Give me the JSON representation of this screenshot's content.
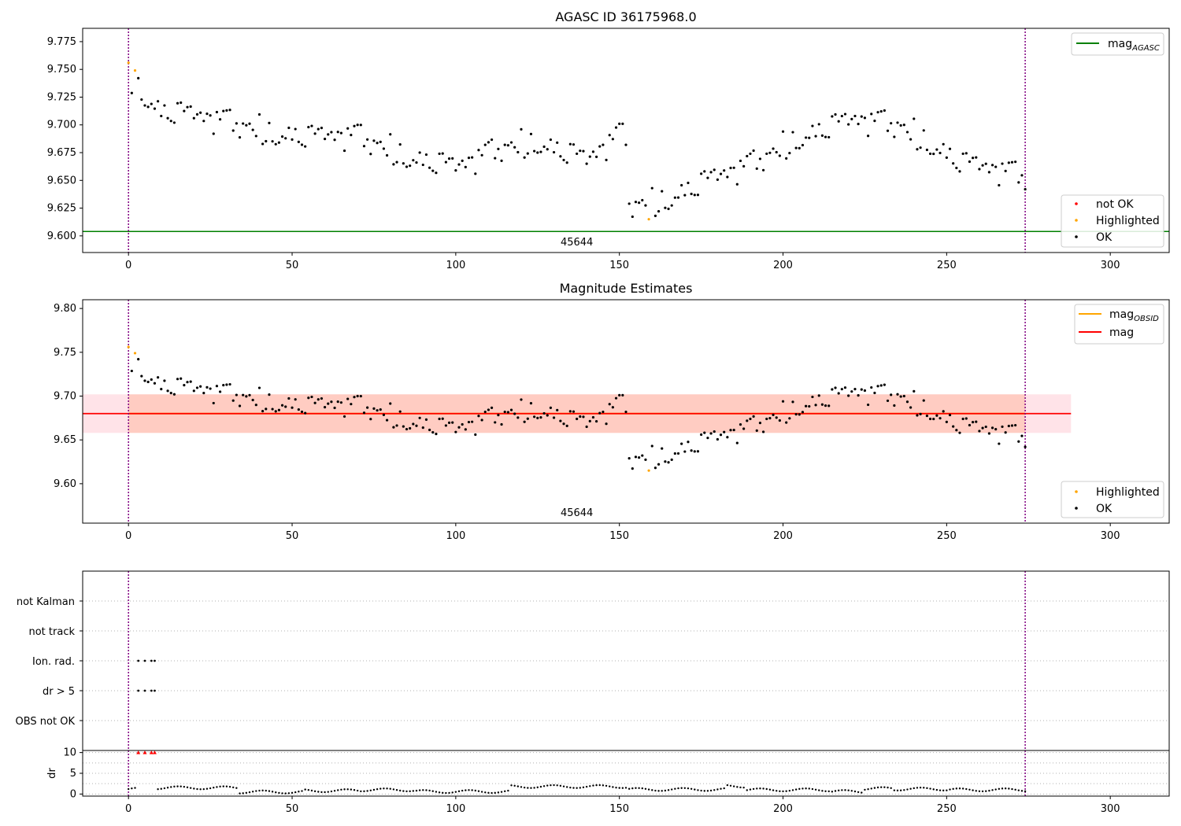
{
  "figure": {
    "title": "AGASC ID 36175968.0"
  },
  "colors": {
    "ok": "#000000",
    "highlighted": "#ffa500",
    "not_ok": "#ff0000",
    "agasc_line": "#008000",
    "mag_line": "#ff0000",
    "obsid_line": "#ffa500",
    "band_outer": "#ffc0cb",
    "band_inner": "#ffa07a",
    "vline": "#800080",
    "grid": "#b0b0b0"
  },
  "chart_data": [
    {
      "id": "agasc_panel",
      "type": "scatter",
      "title": "AGASC ID 36175968.0",
      "xlim": [
        -14,
        318
      ],
      "ylim": [
        9.585,
        9.787
      ],
      "xticks": [
        0,
        50,
        100,
        150,
        200,
        250,
        300
      ],
      "yticks": [
        9.6,
        9.625,
        9.65,
        9.675,
        9.7,
        9.725,
        9.75,
        9.775
      ],
      "ytick_labels": [
        "9.600",
        "9.625",
        "9.650",
        "9.675",
        "9.700",
        "9.725",
        "9.750",
        "9.775"
      ],
      "obsid_annotation": {
        "text": "45644",
        "x": 137
      },
      "obsid_boundaries": [
        0,
        274
      ],
      "hlines": [
        {
          "name": "mag_AGASC",
          "y": 9.604,
          "color_key": "agasc_line"
        }
      ],
      "legend_top": {
        "position": "top-right",
        "entries": [
          {
            "base": "mag",
            "sub": "AGASC",
            "kind": "line",
            "color_key": "agasc_line"
          }
        ]
      },
      "legend_bottom": {
        "position": "lower-right",
        "entries": [
          {
            "label": "not OK",
            "kind": "dot",
            "color_key": "not_ok"
          },
          {
            "label": "Highlighted",
            "kind": "dot",
            "color_key": "highlighted"
          },
          {
            "label": "OK",
            "kind": "dot",
            "color_key": "ok"
          }
        ]
      },
      "highlighted_points": [
        {
          "x": 0,
          "y": 9.756
        },
        {
          "x": 2,
          "y": 9.749
        },
        {
          "x": 159,
          "y": 9.615
        }
      ]
    },
    {
      "id": "estimates_panel",
      "type": "scatter",
      "title": "Magnitude Estimates",
      "xlim": [
        -14,
        318
      ],
      "ylim": [
        9.555,
        9.81
      ],
      "xticks": [
        0,
        50,
        100,
        150,
        200,
        250,
        300
      ],
      "yticks": [
        9.6,
        9.65,
        9.7,
        9.75,
        9.8
      ],
      "ytick_labels": [
        "9.60",
        "9.65",
        "9.70",
        "9.75",
        "9.80"
      ],
      "obsid_annotation": {
        "text": "45644",
        "x": 137
      },
      "obsid_boundaries": [
        0,
        274
      ],
      "mag_line": {
        "y": 9.68,
        "x_start": -14,
        "x_end": 288
      },
      "band": {
        "y_low": 9.658,
        "y_high": 9.702,
        "x_start": -14,
        "x_end": 288
      },
      "obsid_mag_segment": {
        "y": 9.68,
        "x_start": 0,
        "x_end": 274
      },
      "legend_top": {
        "position": "top-right",
        "entries": [
          {
            "base": "mag",
            "sub": "OBSID",
            "kind": "line",
            "color_key": "obsid_line"
          },
          {
            "base": "mag",
            "sub": "",
            "kind": "line",
            "color_key": "mag_line"
          }
        ]
      },
      "legend_bottom": {
        "position": "lower-right",
        "entries": [
          {
            "label": "Highlighted",
            "kind": "dot",
            "color_key": "highlighted"
          },
          {
            "label": "OK",
            "kind": "dot",
            "color_key": "ok"
          }
        ]
      },
      "highlighted_points": [
        {
          "x": 0,
          "y": 9.756
        },
        {
          "x": 2,
          "y": 9.749
        },
        {
          "x": 159,
          "y": 9.615
        }
      ]
    },
    {
      "id": "flags_panel",
      "type": "scatter",
      "xlim": [
        -14,
        318
      ],
      "categories": [
        "OBS not OK",
        "dr > 5",
        "Ion. rad.",
        "not track",
        "not Kalman"
      ],
      "points": [
        {
          "category": "dr > 5",
          "x": [
            3,
            5,
            7,
            8
          ]
        },
        {
          "category": "Ion. rad.",
          "x": [
            3,
            5,
            7,
            8
          ]
        }
      ],
      "obsid_boundaries": [
        0,
        274
      ]
    },
    {
      "id": "dr_panel",
      "type": "scatter",
      "ylabel": "dr",
      "xlim": [
        -14,
        318
      ],
      "ylim": [
        -0.5,
        10.5
      ],
      "xticks": [
        0,
        50,
        100,
        150,
        200,
        250,
        300
      ],
      "yticks": [
        0,
        5,
        10
      ],
      "ytick_labels": [
        "0",
        "5",
        "10"
      ],
      "grid_y": [
        0,
        2.5,
        5,
        7.5,
        10
      ],
      "obsid_boundaries": [
        0,
        274
      ],
      "capped_points": {
        "y": 10,
        "x": [
          3,
          5,
          7,
          8
        ]
      },
      "dr_segments": [
        {
          "from": 0,
          "to": 2,
          "value": 1.2
        },
        {
          "from": 9,
          "to": 33,
          "value": 1.5
        },
        {
          "from": 34,
          "to": 53,
          "value": 0.5
        },
        {
          "from": 54,
          "to": 70,
          "value": 0.8
        },
        {
          "from": 71,
          "to": 87,
          "value": 1.0
        },
        {
          "from": 88,
          "to": 116,
          "value": 0.6
        },
        {
          "from": 117,
          "to": 152,
          "value": 1.8
        },
        {
          "from": 153,
          "to": 182,
          "value": 1.1
        },
        {
          "from": 183,
          "to": 188,
          "value": 1.9
        },
        {
          "from": 189,
          "to": 214,
          "value": 1.0
        },
        {
          "from": 215,
          "to": 224,
          "value": 0.6
        },
        {
          "from": 225,
          "to": 233,
          "value": 1.3
        },
        {
          "from": 234,
          "to": 250,
          "value": 1.2
        },
        {
          "from": 251,
          "to": 274,
          "value": 1.0
        }
      ]
    }
  ],
  "mag_series": {
    "x_start": 0,
    "knots": [
      [
        0,
        9.745
      ],
      [
        10,
        9.712
      ],
      [
        30,
        9.702
      ],
      [
        55,
        9.688
      ],
      [
        70,
        9.689
      ],
      [
        90,
        9.668
      ],
      [
        100,
        9.66
      ],
      [
        115,
        9.68
      ],
      [
        125,
        9.686
      ],
      [
        140,
        9.666
      ],
      [
        150,
        9.69
      ],
      [
        152,
        9.688
      ],
      [
        153,
        9.628
      ],
      [
        160,
        9.63
      ],
      [
        175,
        9.646
      ],
      [
        190,
        9.663
      ],
      [
        205,
        9.69
      ],
      [
        222,
        9.703
      ],
      [
        235,
        9.7
      ],
      [
        245,
        9.685
      ],
      [
        255,
        9.664
      ],
      [
        274,
        9.653
      ]
    ],
    "noise": [
      0.006,
      -0.011,
      0.004,
      0.013,
      -0.002,
      -0.009,
      0.01,
      -0.005,
      0.002,
      0.008,
      -0.013,
      0.005,
      -0.003,
      0.011,
      -0.007,
      0.001,
      0.009,
      -0.01,
      0.004,
      -0.004,
      0.012,
      -0.008,
      0.003,
      -0.001,
      0.007,
      -0.012,
      0.006,
      -0.006,
      0.01,
      -0.002,
      0.003,
      -0.009,
      0.008,
      -0.004,
      0.001,
      0.011,
      -0.007,
      0.005,
      -0.011,
      0.002
    ],
    "highlighted_index": [
      0,
      2,
      159
    ]
  }
}
